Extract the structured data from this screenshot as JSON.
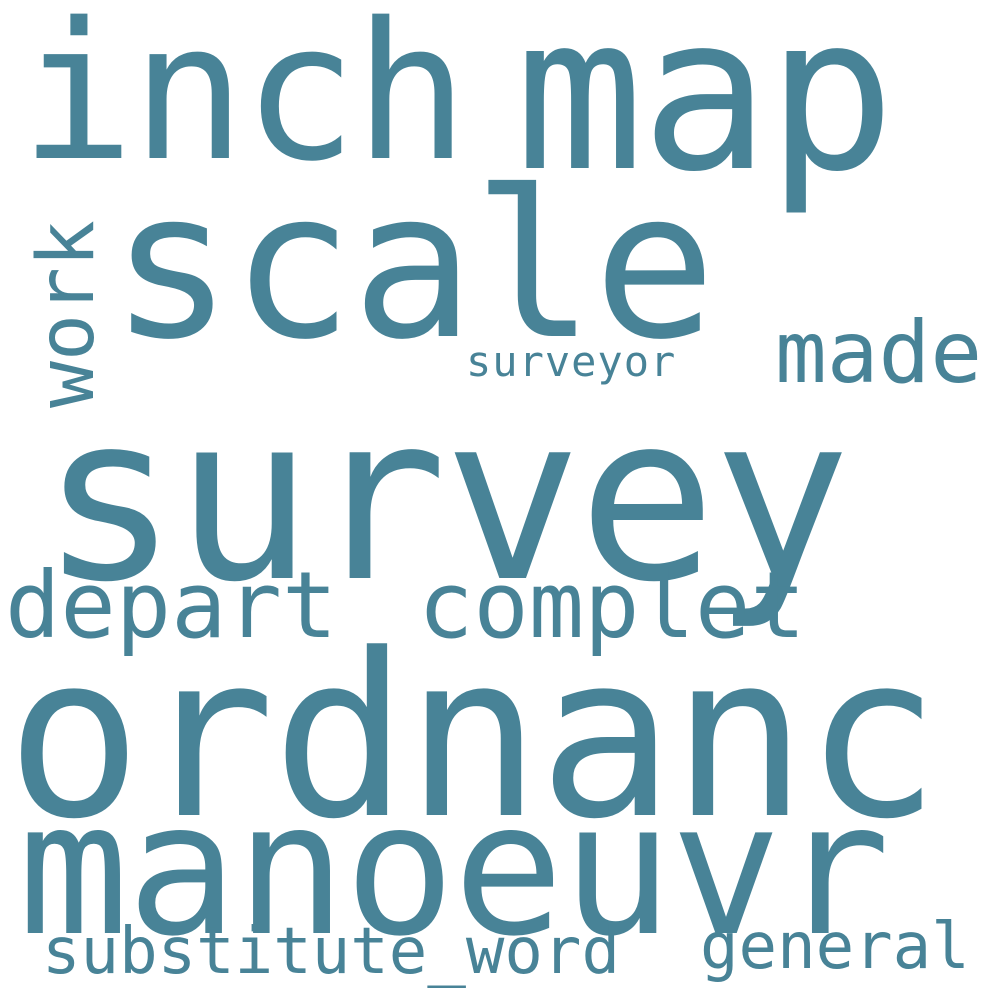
{
  "palette": {
    "background": "#ffffff",
    "word_color": "#488397"
  },
  "words": [
    {
      "id": "survey",
      "text": "survey",
      "orientation": "horizontal"
    },
    {
      "id": "ordnanc",
      "text": "ordnanc",
      "orientation": "horizontal"
    },
    {
      "id": "manoeuvr",
      "text": "manoeuvr",
      "orientation": "horizontal"
    },
    {
      "id": "scale",
      "text": "scale",
      "orientation": "horizontal"
    },
    {
      "id": "map",
      "text": "map",
      "orientation": "horizontal"
    },
    {
      "id": "inch",
      "text": "inch",
      "orientation": "horizontal"
    },
    {
      "id": "complet",
      "text": "complet",
      "orientation": "horizontal"
    },
    {
      "id": "depart",
      "text": "depart",
      "orientation": "horizontal"
    },
    {
      "id": "made",
      "text": "made",
      "orientation": "horizontal"
    },
    {
      "id": "surveyor",
      "text": "surveyor",
      "orientation": "horizontal"
    },
    {
      "id": "substitute_word",
      "text": "substitute_word",
      "orientation": "horizontal"
    },
    {
      "id": "general",
      "text": "general",
      "orientation": "horizontal"
    },
    {
      "id": "work",
      "text": "work",
      "orientation": "vertical"
    }
  ]
}
